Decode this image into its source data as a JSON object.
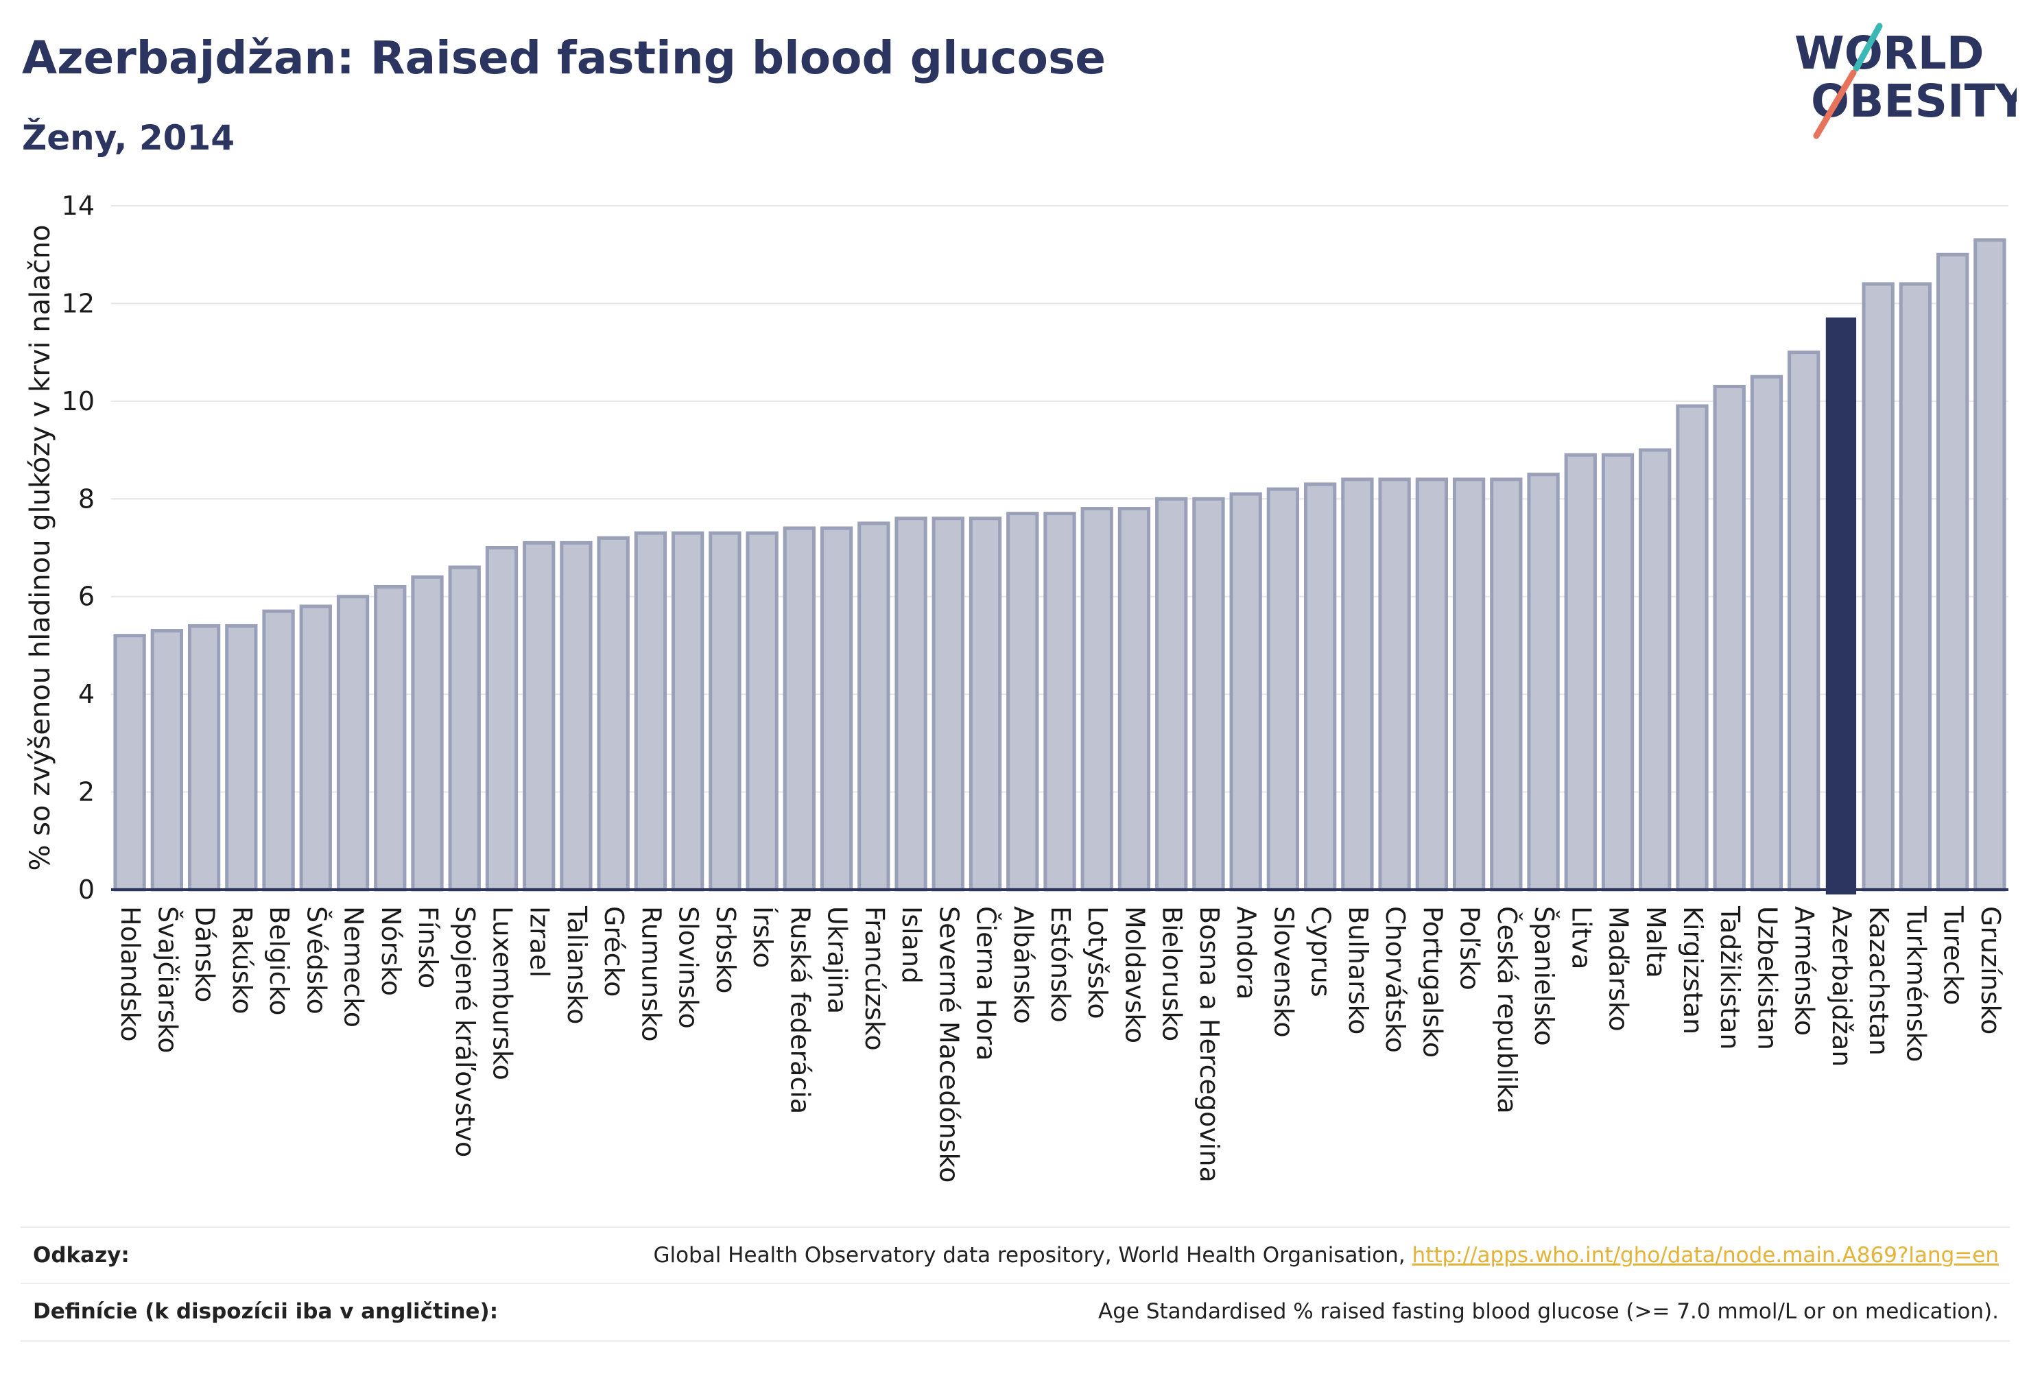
{
  "header": {
    "title": "Azerbajdžan: Raised fasting blood glucose",
    "subtitle": "Ženy, 2014"
  },
  "logo": {
    "line1": "WORLD",
    "line2": "OBESITY"
  },
  "chart_data": {
    "type": "bar",
    "title": "Azerbajdžan: Raised fasting blood glucose",
    "subtitle": "Ženy, 2014",
    "xlabel": "",
    "ylabel": "% so zvýšenou hladinou glukózy v krvi nalačno",
    "ylim": [
      0,
      14
    ],
    "yticks": [
      0,
      2,
      4,
      6,
      8,
      10,
      12,
      14
    ],
    "grid": true,
    "highlight": "Azerbajdžan",
    "categories": [
      "Holandsko",
      "Švajčiarsko",
      "Dánsko",
      "Rakúsko",
      "Belgicko",
      "Švédsko",
      "Nemecko",
      "Nórsko",
      "Fínsko",
      "Spojené kráľovstvo",
      "Luxembursko",
      "Izrael",
      "Taliansko",
      "Grécko",
      "Rumunsko",
      "Slovinsko",
      "Srbsko",
      "Írsko",
      "Ruská federácia",
      "Ukrajina",
      "Francúzsko",
      "Island",
      "Severné Macedónsko",
      "Čierna Hora",
      "Albánsko",
      "Estónsko",
      "Lotyšsko",
      "Moldavsko",
      "Bielorusko",
      "Bosna a Hercegovina",
      "Andora",
      "Slovensko",
      "Cyprus",
      "Bulharsko",
      "Chorvátsko",
      "Portugalsko",
      "Poľsko",
      "Česká republika",
      "Španielsko",
      "Litva",
      "Maďarsko",
      "Malta",
      "Kirgizstan",
      "Tadžikistan",
      "Uzbekistan",
      "Arménsko",
      "Azerbajdžan",
      "Kazachstan",
      "Turkménsko",
      "Turecko",
      "Gruzínsko"
    ],
    "values": [
      5.2,
      5.3,
      5.4,
      5.4,
      5.7,
      5.8,
      6.0,
      6.2,
      6.4,
      6.6,
      7.0,
      7.1,
      7.1,
      7.2,
      7.3,
      7.3,
      7.3,
      7.3,
      7.4,
      7.4,
      7.5,
      7.6,
      7.6,
      7.6,
      7.7,
      7.7,
      7.8,
      7.8,
      8.0,
      8.0,
      8.1,
      8.2,
      8.3,
      8.4,
      8.4,
      8.4,
      8.4,
      8.4,
      8.5,
      8.9,
      8.9,
      9.0,
      9.9,
      10.3,
      10.5,
      11.0,
      11.7,
      12.4,
      12.4,
      13.0,
      13.3
    ],
    "colors": {
      "bar": "#bfc3d2",
      "bar_border": "#9aa0b8",
      "highlight": "#2b3560",
      "grid": "#e6e6e6",
      "axis": "#2b3560"
    }
  },
  "footer": {
    "references_label": "Odkazy:",
    "references_text": "Global Health Observatory data repository, World Health Organisation, ",
    "references_link": "http://apps.who.int/gho/data/node.main.A869?lang=en",
    "definitions_label": "Definície (k dispozícii iba v angličtine):",
    "definitions_text": "Age Standardised % raised fasting blood glucose (>= 7.0 mmol/L or on medication)."
  }
}
